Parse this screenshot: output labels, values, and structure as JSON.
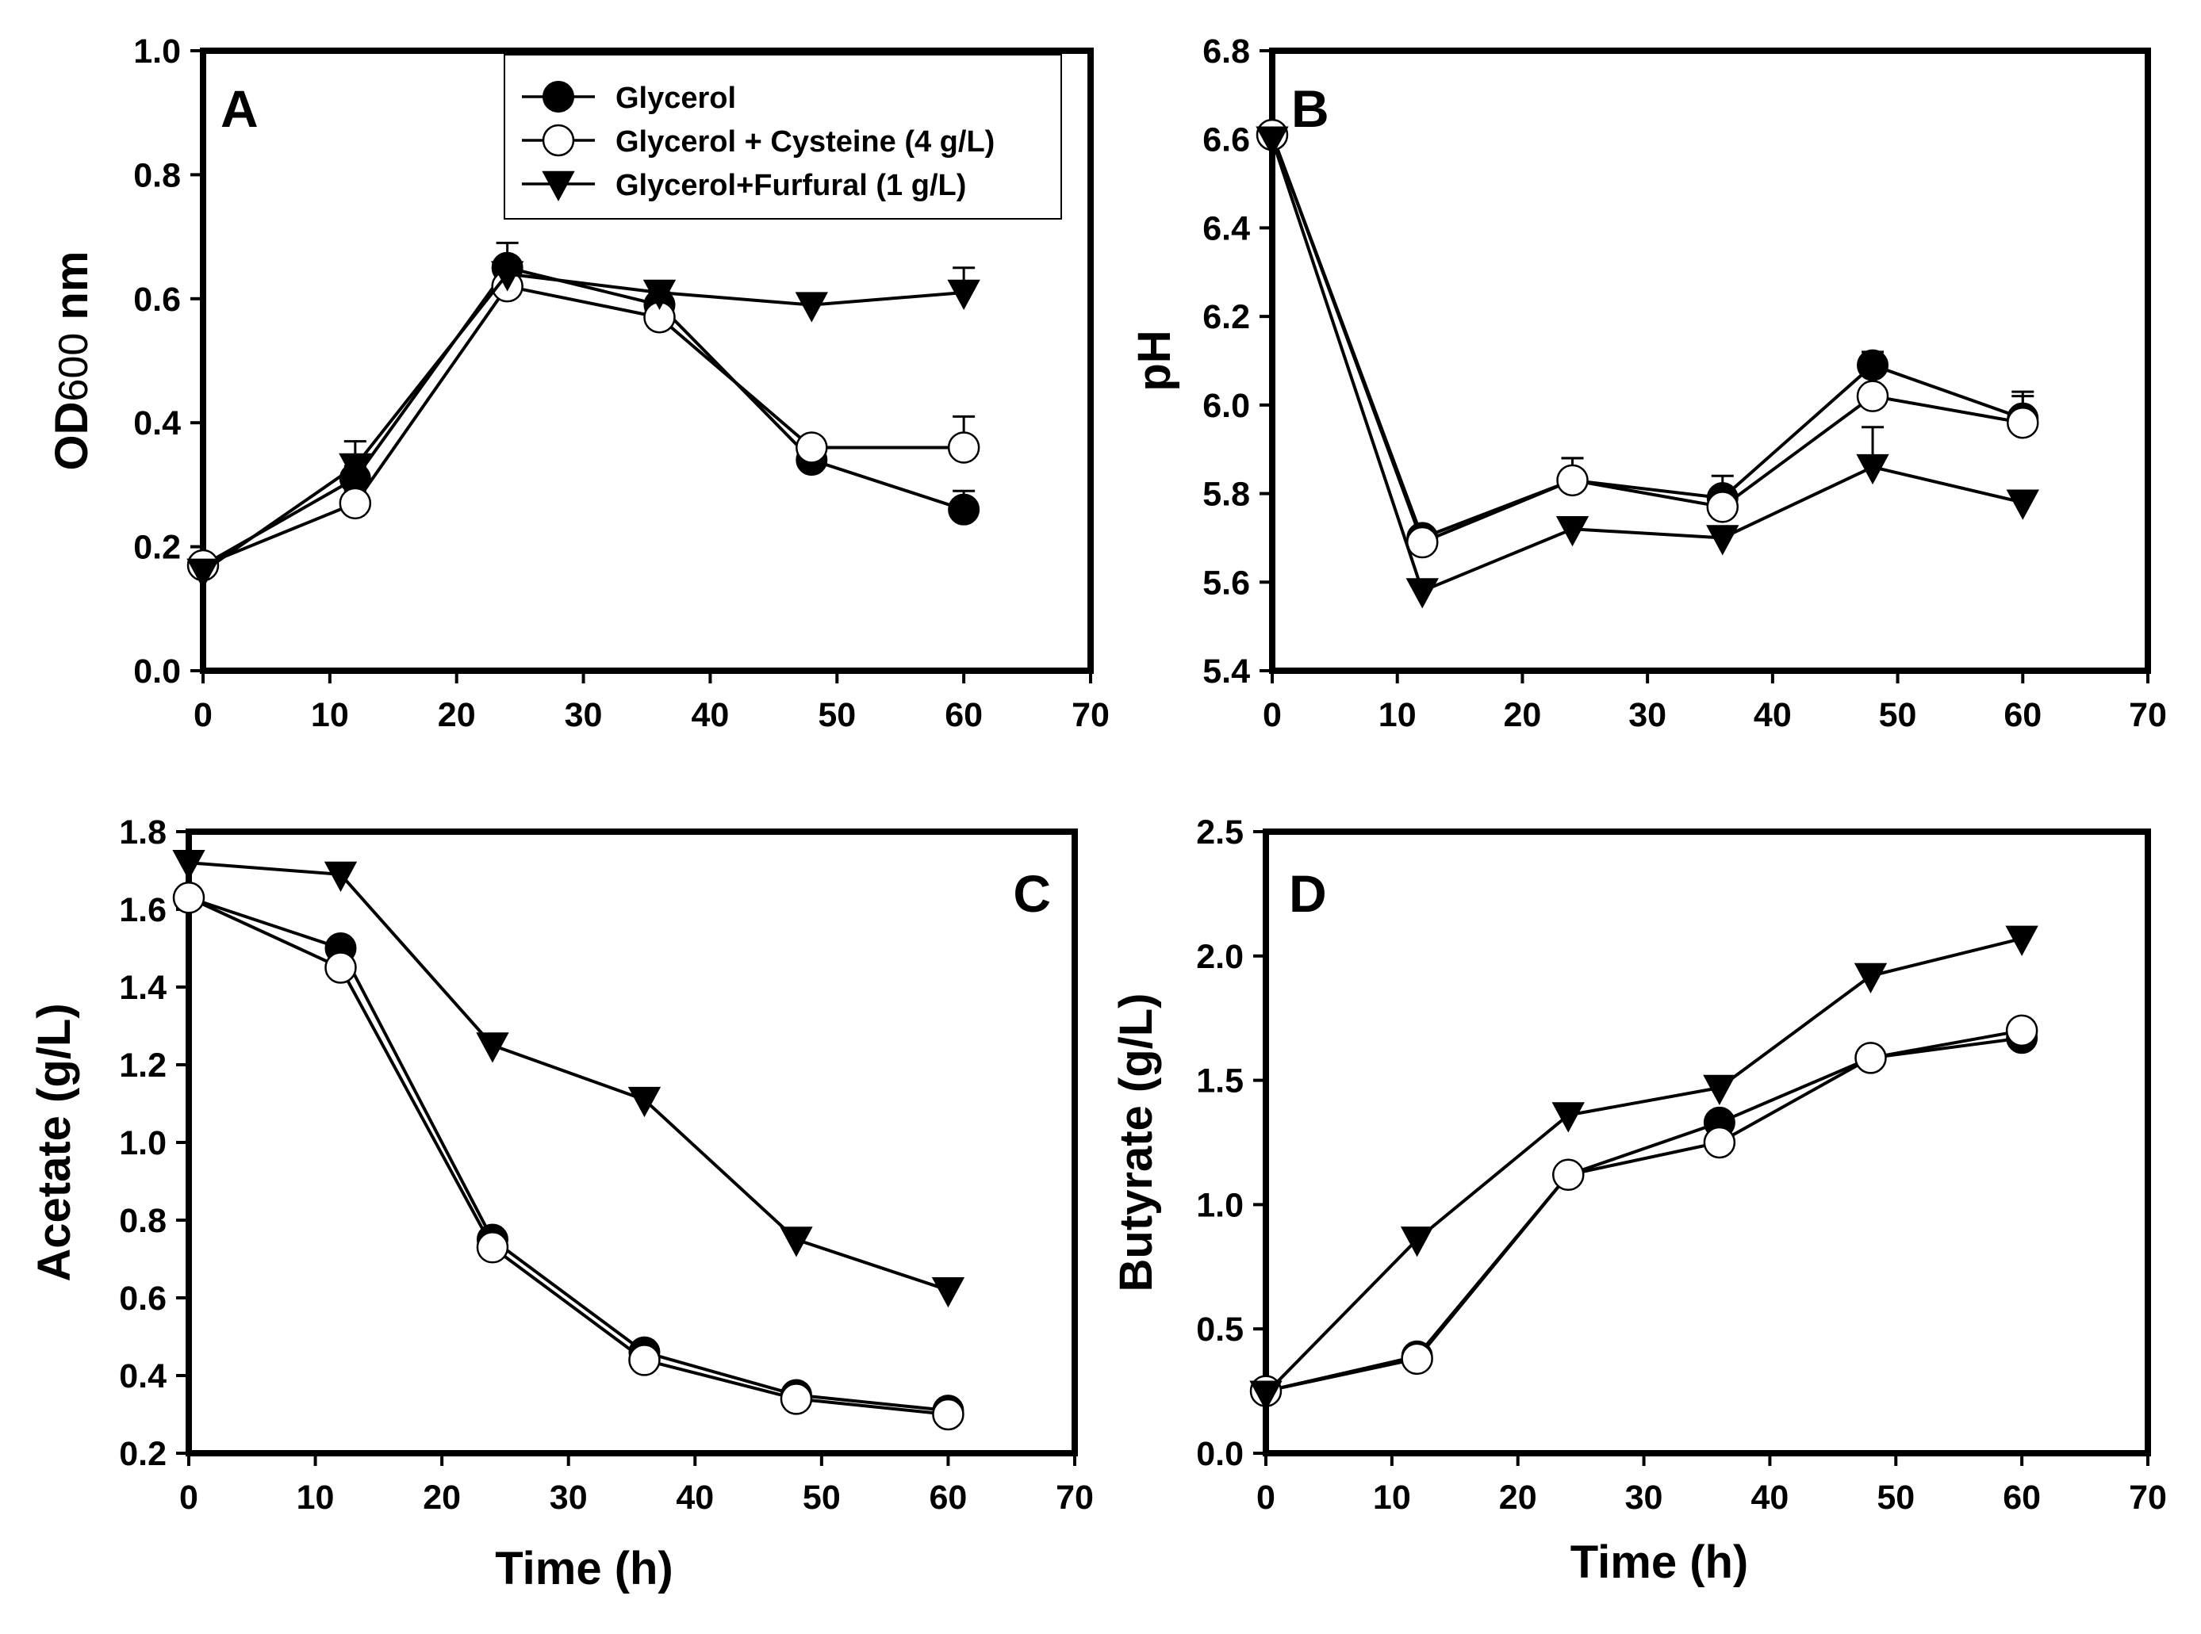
{
  "figure": {
    "legend": {
      "entries": [
        "Glycerol",
        "Glycerol + Cysteine (4 g/L)",
        "Glycerol+Furfural (1 g/L)"
      ],
      "placement": "top-right of panel A",
      "markers": [
        "filled-circle",
        "open-circle",
        "filled-triangle-down"
      ]
    }
  },
  "chart_data": [
    {
      "panel": "A",
      "type": "line",
      "title": "",
      "xlabel": "",
      "ylabel_main": "OD",
      "ylabel_sub": "600",
      "ylabel_rest": " nm",
      "xlim": [
        0,
        70
      ],
      "ylim": [
        0.0,
        1.0
      ],
      "xticks": [
        0,
        10,
        20,
        30,
        40,
        50,
        60,
        70
      ],
      "yticks": [
        0.0,
        0.2,
        0.4,
        0.6,
        0.8,
        1.0
      ],
      "ytick_decimals": 1,
      "x": [
        0,
        12,
        24,
        36,
        48,
        60
      ],
      "series": [
        {
          "name": "Glycerol",
          "marker": "filled-circle",
          "values": [
            0.17,
            0.31,
            0.65,
            0.59,
            0.34,
            0.26
          ],
          "errors": [
            0.01,
            0.02,
            0.04,
            0.02,
            0.02,
            0.03
          ]
        },
        {
          "name": "Glycerol + Cysteine (4 g/L)",
          "marker": "open-circle",
          "values": [
            0.17,
            0.27,
            0.62,
            0.57,
            0.36,
            0.36
          ],
          "errors": [
            0.01,
            0.02,
            0.01,
            0.02,
            0.0,
            0.05
          ]
        },
        {
          "name": "Glycerol+Furfural (1 g/L)",
          "marker": "filled-triangle-down",
          "values": [
            0.16,
            0.33,
            0.64,
            0.61,
            0.59,
            0.61
          ],
          "errors": [
            0.01,
            0.04,
            0.02,
            0.01,
            0.01,
            0.04
          ]
        }
      ]
    },
    {
      "panel": "B",
      "type": "line",
      "title": "",
      "xlabel": "",
      "ylabel_main": "pH",
      "ylabel_sub": "",
      "ylabel_rest": "",
      "xlim": [
        0,
        70
      ],
      "ylim": [
        5.4,
        6.8
      ],
      "xticks": [
        0,
        10,
        20,
        30,
        40,
        50,
        60,
        70
      ],
      "yticks": [
        5.4,
        5.6,
        5.8,
        6.0,
        6.2,
        6.4,
        6.6,
        6.8
      ],
      "ytick_decimals": 1,
      "x": [
        0,
        12,
        24,
        36,
        48,
        60
      ],
      "series": [
        {
          "name": "Glycerol",
          "marker": "filled-circle",
          "values": [
            6.61,
            5.7,
            5.83,
            5.79,
            6.09,
            5.97
          ],
          "errors": [
            0.01,
            0.01,
            0.05,
            0.05,
            0.03,
            0.06
          ]
        },
        {
          "name": "Glycerol + Cysteine (4 g/L)",
          "marker": "open-circle",
          "values": [
            6.61,
            5.69,
            5.83,
            5.77,
            6.02,
            5.96
          ],
          "errors": [
            0.01,
            0.01,
            0.05,
            0.02,
            0.01,
            0.06
          ]
        },
        {
          "name": "Glycerol+Furfural (1 g/L)",
          "marker": "filled-triangle-down",
          "values": [
            6.6,
            5.58,
            5.72,
            5.7,
            5.86,
            5.78
          ],
          "errors": [
            0.01,
            0.01,
            0.01,
            0.01,
            0.09,
            0.01
          ]
        }
      ]
    },
    {
      "panel": "C",
      "type": "line",
      "title": "",
      "xlabel": "Time (h)",
      "ylabel_main": "Acetate (g/L)",
      "ylabel_sub": "",
      "ylabel_rest": "",
      "xlim": [
        0,
        70
      ],
      "ylim": [
        0.2,
        1.8
      ],
      "xticks": [
        0,
        10,
        20,
        30,
        40,
        50,
        60,
        70
      ],
      "yticks": [
        0.2,
        0.4,
        0.6,
        0.8,
        1.0,
        1.2,
        1.4,
        1.6,
        1.8
      ],
      "ytick_decimals": 1,
      "x": [
        0,
        12,
        24,
        36,
        48,
        60
      ],
      "series": [
        {
          "name": "Glycerol",
          "marker": "filled-circle",
          "values": [
            1.63,
            1.5,
            0.75,
            0.46,
            0.35,
            0.31
          ],
          "errors": [
            0,
            0,
            0,
            0,
            0,
            0
          ]
        },
        {
          "name": "Glycerol + Cysteine (4 g/L)",
          "marker": "open-circle",
          "values": [
            1.63,
            1.45,
            0.73,
            0.44,
            0.34,
            0.3
          ],
          "errors": [
            0,
            0,
            0,
            0,
            0,
            0
          ]
        },
        {
          "name": "Glycerol+Furfural (1 g/L)",
          "marker": "filled-triangle-down",
          "values": [
            1.72,
            1.69,
            1.25,
            1.11,
            0.75,
            0.62
          ],
          "errors": [
            0,
            0,
            0,
            0,
            0,
            0
          ]
        }
      ]
    },
    {
      "panel": "D",
      "type": "line",
      "title": "",
      "xlabel": "Time (h)",
      "ylabel_main": "Butyrate (g/L)",
      "ylabel_sub": "",
      "ylabel_rest": "",
      "xlim": [
        0,
        70
      ],
      "ylim": [
        0.0,
        2.5
      ],
      "xticks": [
        0,
        10,
        20,
        30,
        40,
        50,
        60,
        70
      ],
      "yticks": [
        0.0,
        0.5,
        1.0,
        1.5,
        2.0,
        2.5
      ],
      "ytick_decimals": 1,
      "x": [
        0,
        12,
        24,
        36,
        48,
        60
      ],
      "series": [
        {
          "name": "Glycerol",
          "marker": "filled-circle",
          "values": [
            0.25,
            0.39,
            1.12,
            1.33,
            1.59,
            1.67
          ],
          "errors": [
            0,
            0,
            0,
            0,
            0,
            0
          ]
        },
        {
          "name": "Glycerol + Cysteine (4 g/L)",
          "marker": "open-circle",
          "values": [
            0.25,
            0.38,
            1.12,
            1.25,
            1.59,
            1.7
          ],
          "errors": [
            0,
            0,
            0,
            0,
            0,
            0
          ]
        },
        {
          "name": "Glycerol+Furfural (1 g/L)",
          "marker": "filled-triangle-down",
          "values": [
            0.24,
            0.86,
            1.36,
            1.47,
            1.92,
            2.07
          ],
          "errors": [
            0,
            0,
            0,
            0,
            0,
            0
          ]
        }
      ]
    }
  ]
}
